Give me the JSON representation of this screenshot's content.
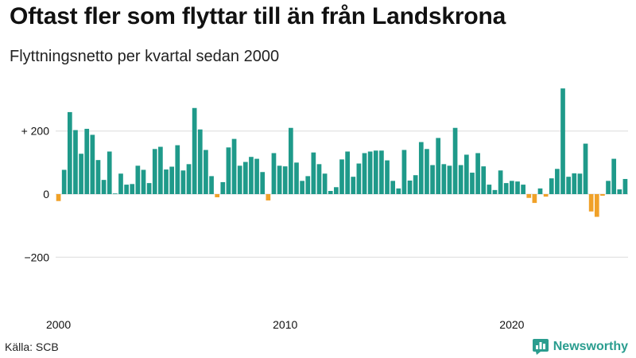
{
  "title": "Oftast fler som flyttar till än från Landskrona",
  "subtitle": "Flyttningsnetto per kvartal sedan 2000",
  "source": "Källa: SCB",
  "brand": "Newsworthy",
  "colors": {
    "positive": "#1f9a8a",
    "negative": "#f0a128",
    "grid": "#dcdcdc",
    "brand": "#2a9d8f"
  },
  "chart_data": {
    "type": "bar",
    "ylim": [
      -350,
      350
    ],
    "yticks": [
      -200,
      0,
      200
    ],
    "ytick_labels": [
      "−200",
      "0",
      "+ 200"
    ],
    "xtick_labels": [
      {
        "year": 2000,
        "label": "2000"
      },
      {
        "year": 2010,
        "label": "2010"
      },
      {
        "year": 2020,
        "label": "2020"
      }
    ],
    "start_year": 2000,
    "grid": true,
    "values": [
      -22,
      77,
      260,
      203,
      128,
      207,
      188,
      108,
      45,
      135,
      2,
      65,
      30,
      32,
      90,
      77,
      35,
      143,
      150,
      78,
      87,
      155,
      75,
      95,
      273,
      205,
      140,
      57,
      -10,
      38,
      148,
      175,
      90,
      102,
      118,
      112,
      70,
      -20,
      130,
      90,
      88,
      210,
      100,
      42,
      57,
      132,
      95,
      65,
      10,
      22,
      110,
      135,
      55,
      97,
      130,
      135,
      138,
      138,
      107,
      42,
      18,
      140,
      43,
      60,
      165,
      143,
      92,
      178,
      95,
      90,
      210,
      92,
      125,
      68,
      130,
      88,
      30,
      13,
      75,
      35,
      42,
      40,
      30,
      -12,
      -28,
      18,
      -8,
      50,
      80,
      335,
      55,
      66,
      65,
      160,
      -55,
      -72,
      -5,
      42,
      112,
      15,
      48
    ]
  }
}
